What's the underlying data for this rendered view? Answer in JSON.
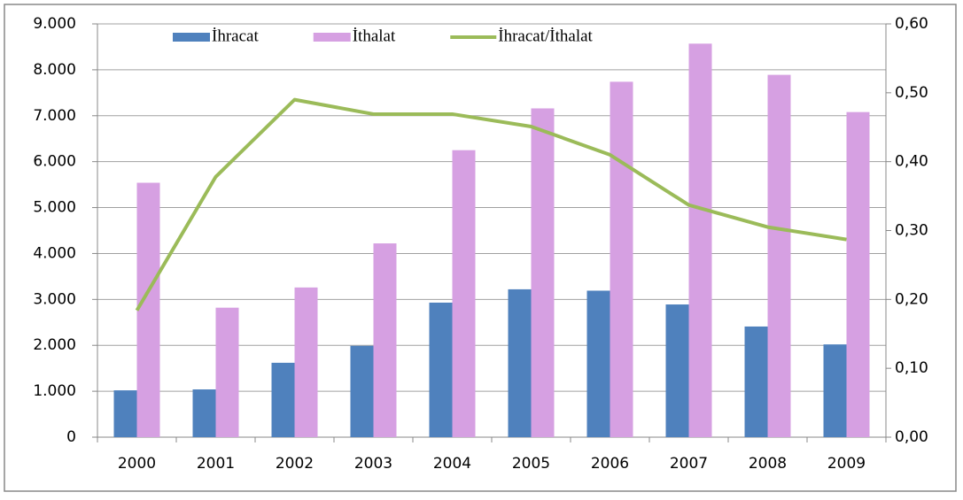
{
  "chart_data": {
    "type": "bar-line",
    "categories": [
      "2000",
      "2001",
      "2002",
      "2003",
      "2004",
      "2005",
      "2006",
      "2007",
      "2008",
      "2009"
    ],
    "series": [
      {
        "name": "İhracat",
        "color": "#4f81bd",
        "type": "bar",
        "values": [
          1020,
          1040,
          1620,
          1990,
          2930,
          3220,
          3190,
          2890,
          2410,
          2020
        ]
      },
      {
        "name": "İthalat",
        "color": "#d6a0e2",
        "type": "bar",
        "values": [
          5540,
          2820,
          3260,
          4220,
          6250,
          7160,
          7740,
          8570,
          7890,
          7080
        ]
      },
      {
        "name": "İhracat/İthalat",
        "color": "#9bbb59",
        "type": "line",
        "axis": "y2",
        "values": [
          0.184,
          0.378,
          0.49,
          0.469,
          0.469,
          0.451,
          0.41,
          0.337,
          0.305,
          0.287
        ]
      }
    ],
    "ylim": [
      0,
      9000
    ],
    "yticks": [
      0,
      {
        "value": 1000,
        "label": "1.000"
      },
      {
        "value": 2000,
        "label": "2.000"
      },
      {
        "value": 3000,
        "label": "3.000"
      },
      {
        "value": 4000,
        "label": "4.000"
      },
      {
        "value": 5000,
        "label": "5.000"
      },
      {
        "value": 6000,
        "label": "6.000"
      },
      {
        "value": 7000,
        "label": "7.000"
      },
      {
        "value": 8000,
        "label": "8.000"
      },
      {
        "value": 9000,
        "label": "9.000"
      }
    ],
    "y2lim": [
      0,
      0.6
    ],
    "y2ticks": [
      {
        "value": 0,
        "label": "0,00"
      },
      {
        "value": 0.1,
        "label": "0,10"
      },
      {
        "value": 0.2,
        "label": "0,20"
      },
      {
        "value": 0.3,
        "label": "0,30"
      },
      {
        "value": 0.4,
        "label": "0,40"
      },
      {
        "value": 0.5,
        "label": "0,50"
      },
      {
        "value": 0.6,
        "label": "0,60"
      }
    ],
    "grid": true,
    "legend": "top"
  }
}
